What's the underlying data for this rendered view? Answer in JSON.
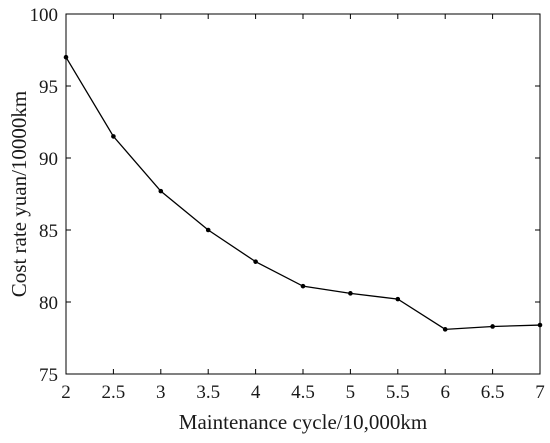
{
  "chart_data": {
    "type": "line",
    "title": "",
    "xlabel": "Maintenance cycle/10,000km",
    "ylabel": "Cost rate yuan/10000km",
    "xlim": [
      2,
      7
    ],
    "ylim": [
      75,
      100
    ],
    "x_ticks": [
      2,
      2.5,
      3,
      3.5,
      4,
      4.5,
      5,
      5.5,
      6,
      6.5,
      7
    ],
    "x_tick_labels": [
      "2",
      "2.5",
      "3",
      "3.5",
      "4",
      "4.5",
      "5",
      "5.5",
      "6",
      "6.5",
      "7"
    ],
    "y_ticks": [
      75,
      80,
      85,
      90,
      95,
      100
    ],
    "y_tick_labels": [
      "75",
      "80",
      "85",
      "90",
      "95",
      "100"
    ],
    "grid": false,
    "legend": "none",
    "series": [
      {
        "color": "#000000",
        "marker": "dot",
        "x": [
          2,
          2.5,
          3,
          3.5,
          4,
          4.5,
          5,
          5.5,
          6,
          6.5,
          7
        ],
        "y": [
          97.0,
          91.5,
          87.7,
          85.0,
          82.8,
          81.1,
          80.6,
          80.2,
          78.1,
          78.3,
          78.4
        ]
      }
    ]
  }
}
